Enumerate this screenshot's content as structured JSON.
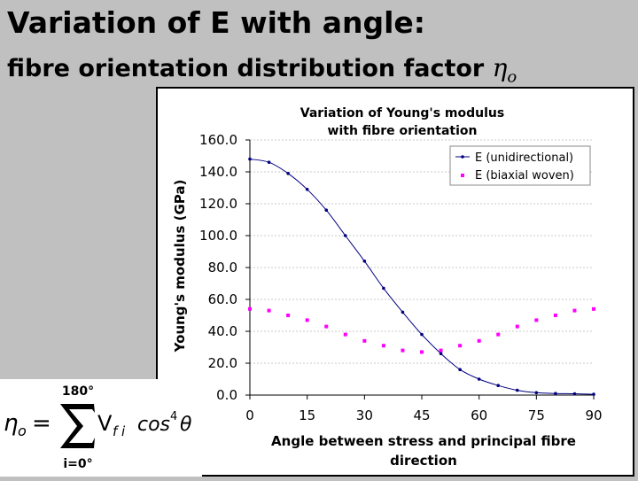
{
  "slide": {
    "title": "Variation of E with angle:",
    "subtitle": "fibre orientation distribution factor",
    "subtitle_symbol": "η",
    "subtitle_symbol_sub": "o"
  },
  "formula": {
    "lhs": "η",
    "lhs_sub": "o",
    "equals": "=",
    "sum_upper": "180°",
    "sum_lower": "i=0°",
    "term": "V",
    "term_sub": "f i",
    "cos": "cos",
    "power": "4",
    "theta": "θ"
  },
  "chart_data": {
    "type": "line",
    "title": "Variation of Young's modulus with fibre orientation",
    "title_lines": [
      "Variation of Young's modulus",
      "with fibre orientation"
    ],
    "xlabel": "Angle between stress and principal fibre direction",
    "xlabel_lines": [
      "Angle between stress and principal fibre",
      "direction"
    ],
    "ylabel": "Young's modulus (GPa)",
    "xlim": [
      0,
      90
    ],
    "ylim": [
      0,
      160
    ],
    "xticks": [
      "0",
      "15",
      "30",
      "45",
      "60",
      "75",
      "90"
    ],
    "yticks": [
      "0.0",
      "20.0",
      "40.0",
      "60.0",
      "80.0",
      "100.0",
      "120.0",
      "140.0",
      "160.0"
    ],
    "legend_position": "top-right",
    "grid": true,
    "series": [
      {
        "name": "E (unidirectional)",
        "color": "#000080",
        "marker": "dot",
        "x": [
          0,
          5,
          10,
          15,
          20,
          25,
          30,
          35,
          40,
          45,
          50,
          55,
          60,
          65,
          70,
          75,
          80,
          85,
          90
        ],
        "y": [
          148,
          146,
          139,
          129,
          116,
          100,
          84,
          67,
          52,
          38,
          26,
          16,
          10,
          6,
          3,
          1.5,
          1,
          0.8,
          0.5
        ]
      },
      {
        "name": "E (biaxial woven)",
        "color": "#ff00ff",
        "marker": "square",
        "x": [
          0,
          5,
          10,
          15,
          20,
          25,
          30,
          35,
          40,
          45,
          50,
          55,
          60,
          65,
          70,
          75,
          80,
          85,
          90
        ],
        "y": [
          54,
          53,
          50,
          47,
          43,
          38,
          34,
          31,
          28,
          27,
          28,
          31,
          34,
          38,
          43,
          47,
          50,
          53,
          54
        ]
      }
    ]
  }
}
